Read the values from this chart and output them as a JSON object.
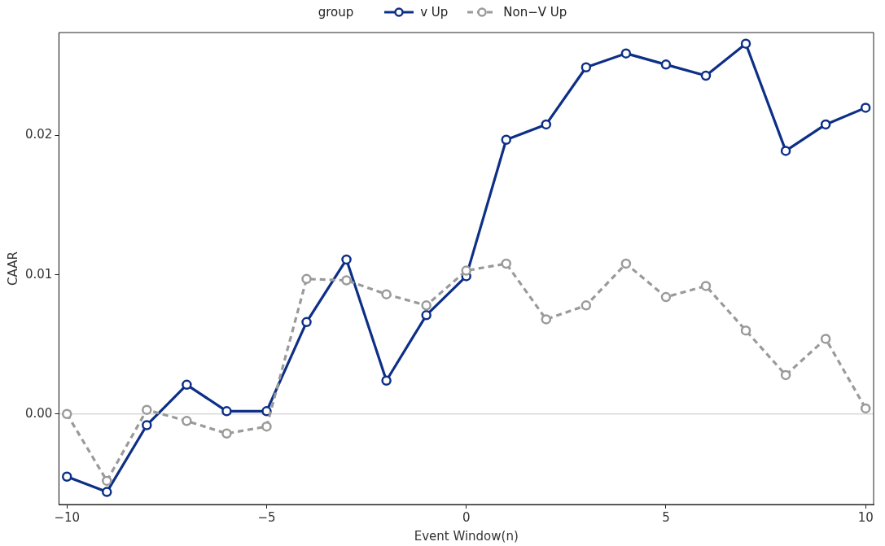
{
  "chart_data": {
    "type": "line",
    "xlabel": "Event Window(n)",
    "ylabel": "CAAR",
    "legend_title": "group",
    "legend": "top",
    "marker": "circle",
    "grid": false,
    "x": [
      -10,
      -9,
      -8,
      -7,
      -6,
      -5,
      -4,
      -3,
      -2,
      -1,
      0,
      1,
      2,
      3,
      4,
      5,
      6,
      7,
      8,
      9,
      10
    ],
    "series": [
      {
        "name": "v Up",
        "color": "#0d2f86",
        "line_style": "solid",
        "values": [
          -0.0045,
          -0.0056,
          -0.0008,
          0.0021,
          0.0002,
          0.0002,
          0.0066,
          0.0111,
          0.0024,
          0.0071,
          0.0099,
          0.0197,
          0.0208,
          0.0249,
          0.0259,
          0.0251,
          0.0243,
          0.0266,
          0.0189,
          0.0208,
          0.022
        ]
      },
      {
        "name": "Non−V Up",
        "color": "#9a9a9a",
        "line_style": "dashed",
        "values": [
          0.0,
          -0.0048,
          0.0003,
          -0.0005,
          -0.0014,
          -0.0009,
          0.0097,
          0.0096,
          0.0086,
          0.0078,
          0.0103,
          0.0108,
          0.0068,
          0.0078,
          0.0108,
          0.0084,
          0.0092,
          0.006,
          0.0028,
          0.0054,
          0.0004
        ]
      }
    ],
    "xlim": [
      -10.2,
      10.2
    ],
    "ylim": [
      -0.0065,
      0.0274
    ],
    "xticks": [
      {
        "value": -10,
        "label": "−10"
      },
      {
        "value": -5,
        "label": "−5"
      },
      0,
      5,
      10
    ],
    "yticks": [
      {
        "value": 0,
        "label": "0.00"
      },
      {
        "value": 0.01,
        "label": "0.01"
      },
      {
        "value": 0.02,
        "label": "0.02"
      }
    ],
    "ref_lines": [
      {
        "axis": "y",
        "value": 0,
        "color": "#c8c8c8",
        "line_style": "solid"
      }
    ]
  }
}
